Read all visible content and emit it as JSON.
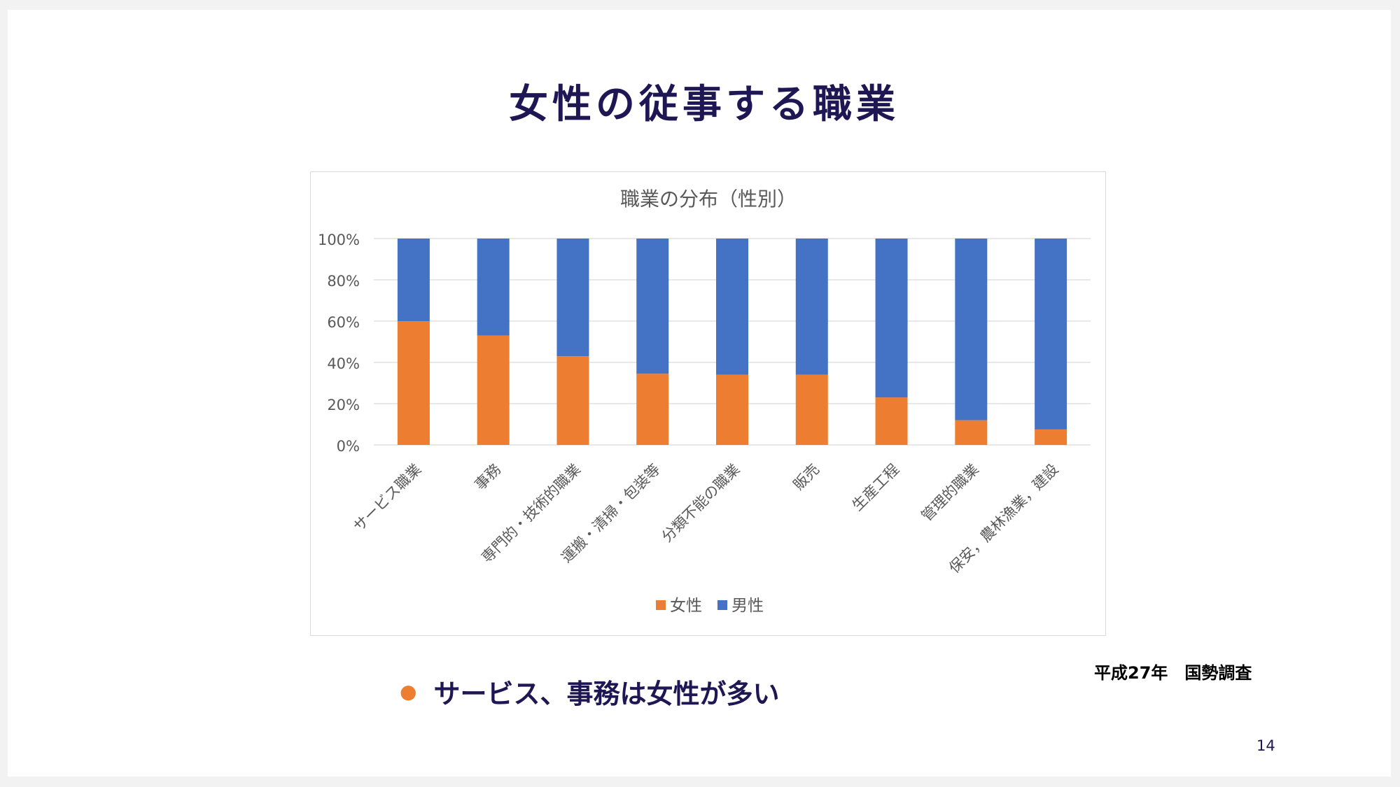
{
  "slide": {
    "title": "女性の従事する職業",
    "source": "平成27年　国勢調査",
    "bullet": "サービス、事務は女性が多い",
    "page_number": "14"
  },
  "colors": {
    "female": "#ed7d31",
    "male": "#4472c4",
    "title": "#1f1654",
    "axis_text": "#595959",
    "gridline": "#d9d9d9"
  },
  "chart_data": {
    "type": "bar",
    "stacked": "percent",
    "title": "職業の分布（性別）",
    "categories": [
      "サービス職業",
      "事務",
      "専門的・技術的職業",
      "運搬・清掃・包装等",
      "分類不能の職業",
      "販売",
      "生産工程",
      "管理的職業",
      "保安，農林漁業，建設"
    ],
    "series": [
      {
        "name": "女性",
        "values": [
          60,
          53,
          43,
          34.5,
          34,
          34,
          23,
          12,
          7.5
        ]
      },
      {
        "name": "男性",
        "values": [
          40,
          47,
          57,
          65.5,
          66,
          66,
          77,
          88,
          92.5
        ]
      }
    ],
    "yticks": [
      "0%",
      "20%",
      "40%",
      "60%",
      "80%",
      "100%"
    ],
    "ylim": [
      0,
      100
    ],
    "grid": true,
    "legend_position": "bottom"
  }
}
